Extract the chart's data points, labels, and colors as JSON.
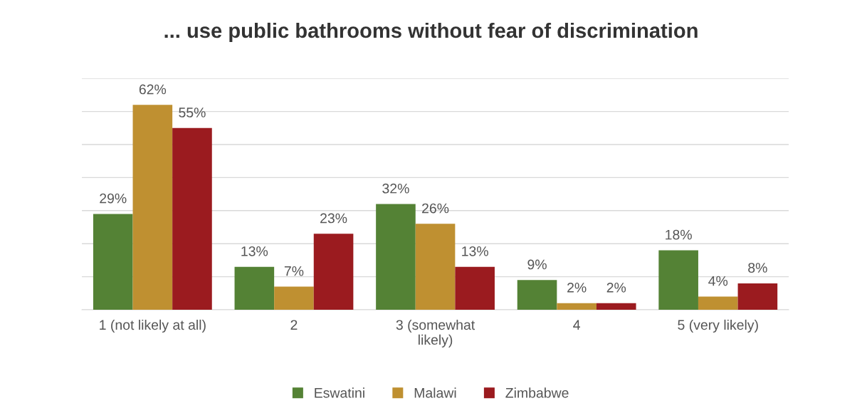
{
  "chart_data": {
    "type": "bar",
    "title": "... use public bathrooms without fear of discrimination",
    "categories": [
      "1 (not likely at all)",
      "2",
      "3 (somewhat\nlikely)",
      "4",
      "5 (very likely)"
    ],
    "series": [
      {
        "name": "Eswatini",
        "color": "#548235",
        "values": [
          29,
          13,
          32,
          9,
          18
        ],
        "value_labels": [
          "29%",
          "13%",
          "32%",
          "9%",
          "18%"
        ]
      },
      {
        "name": "Malawi",
        "color": "#bf9031",
        "values": [
          62,
          7,
          26,
          2,
          4
        ],
        "value_labels": [
          "62%",
          "7%",
          "26%",
          "2%",
          "4%"
        ]
      },
      {
        "name": "Zimbabwe",
        "color": "#9b1b1f",
        "values": [
          55,
          23,
          13,
          2,
          8
        ],
        "value_labels": [
          "55%",
          "23%",
          "13%",
          "2%",
          "8%"
        ]
      }
    ],
    "ylim": [
      0,
      70
    ],
    "yticks": [
      {
        "value": 0,
        "label": null
      },
      {
        "value": 10,
        "label": null
      },
      {
        "value": 20,
        "label": null
      },
      {
        "value": 30,
        "label": null
      },
      {
        "value": 40,
        "label": null
      },
      {
        "value": 50,
        "label": null
      },
      {
        "value": 60,
        "label": null
      },
      {
        "value": 70,
        "label": null
      }
    ],
    "tick_labels": "x",
    "grid": "y",
    "legend": "bottom"
  }
}
